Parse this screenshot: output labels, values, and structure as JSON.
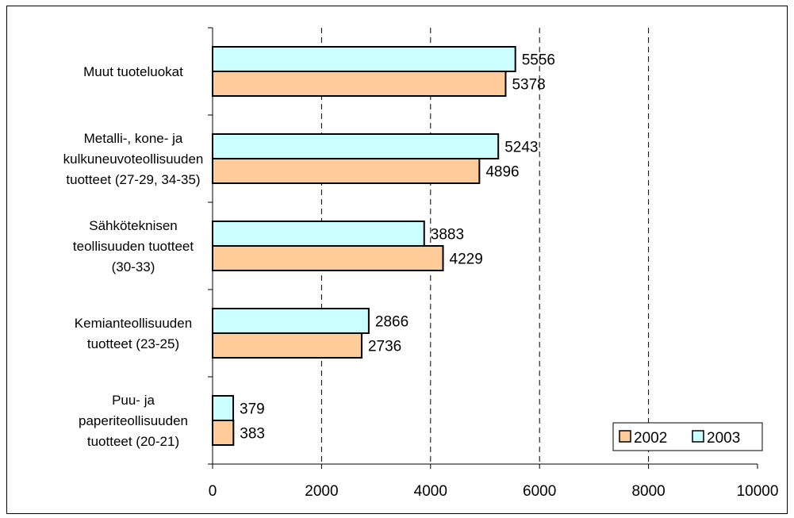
{
  "chart_data": {
    "type": "bar",
    "orientation": "horizontal",
    "categories": [
      [
        "Muut tuoteluokat"
      ],
      [
        "Metalli-, kone- ja",
        "kulkuneuvoteollisuuden",
        "tuotteet (27-29, 34-35)"
      ],
      [
        "Sähköteknisen",
        "teollisuuden tuotteet",
        "(30-33)"
      ],
      [
        "Kemianteollisuuden",
        "tuotteet (23-25)"
      ],
      [
        "Puu- ja",
        "paperiteollisuuden",
        "tuotteet (20-21)"
      ]
    ],
    "series": [
      {
        "name": "2003",
        "color": "#ccffff",
        "values": [
          5556,
          5243,
          3883,
          2866,
          379
        ]
      },
      {
        "name": "2002",
        "color": "#ffcc99",
        "values": [
          5378,
          4896,
          4229,
          2736,
          383
        ]
      }
    ],
    "legend_order": [
      "2002",
      "2003"
    ],
    "legend_position": "bottom-right",
    "xlim": [
      0,
      10000
    ],
    "xticks": [
      "0",
      "2000",
      "4000",
      "6000",
      "8000",
      "10000"
    ],
    "grid": "vertical dashed",
    "title": "",
    "xlabel": "",
    "ylabel": ""
  }
}
